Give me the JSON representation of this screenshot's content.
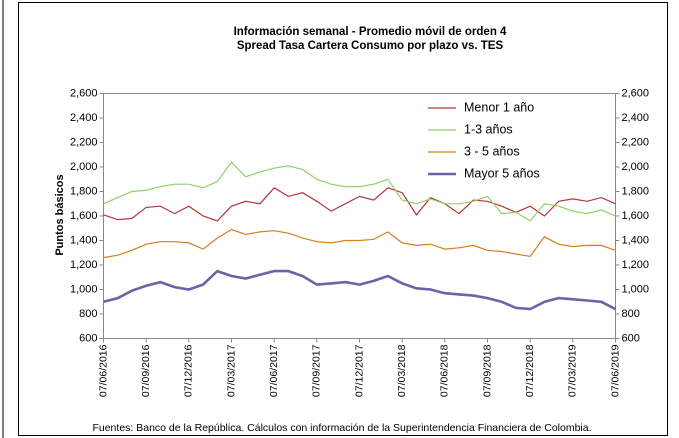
{
  "chart_data": {
    "type": "line",
    "title": "Información semanal - Promedio móvil de orden 4",
    "subtitle": "Spread Tasa Cartera Consumo  por plazo vs. TES",
    "y_label": "Puntos básicos",
    "footer": "Fuentes: Banco de la República. Cálculos con información de la Superintendencia Financiera de Colombia.",
    "x": [
      "07/06/2016",
      "07/07/2016",
      "07/08/2016",
      "07/09/2016",
      "07/10/2016",
      "07/11/2016",
      "07/12/2016",
      "07/01/2017",
      "07/02/2017",
      "07/03/2017",
      "07/04/2017",
      "07/05/2017",
      "07/06/2017",
      "07/07/2017",
      "07/08/2017",
      "07/09/2017",
      "07/10/2017",
      "07/11/2017",
      "07/12/2017",
      "07/01/2018",
      "07/02/2018",
      "07/03/2018",
      "07/04/2018",
      "07/05/2018",
      "07/06/2018",
      "07/07/2018",
      "07/08/2018",
      "07/09/2018",
      "07/10/2018",
      "07/11/2018",
      "07/12/2018",
      "07/01/2019",
      "07/02/2019",
      "07/03/2019",
      "07/04/2019",
      "07/05/2019",
      "07/06/2019"
    ],
    "xticks": [
      "07/06/2016",
      "07/09/2016",
      "07/12/2016",
      "07/03/2017",
      "07/06/2017",
      "07/09/2017",
      "07/12/2017",
      "07/03/2018",
      "07/06/2018",
      "07/09/2018",
      "07/12/2018",
      "07/03/2019",
      "07/06/2019"
    ],
    "series": [
      {
        "name": "Menor 1 año",
        "color": "#b8343a",
        "width": 1.2,
        "values": [
          1610,
          1570,
          1580,
          1670,
          1680,
          1620,
          1680,
          1600,
          1560,
          1680,
          1720,
          1700,
          1830,
          1760,
          1790,
          1720,
          1640,
          1700,
          1760,
          1730,
          1830,
          1790,
          1610,
          1750,
          1700,
          1620,
          1730,
          1720,
          1680,
          1630,
          1680,
          1600,
          1720,
          1740,
          1720,
          1750,
          1700
        ]
      },
      {
        "name": "1-3 años",
        "color": "#8fd16a",
        "width": 1.2,
        "values": [
          1700,
          1750,
          1800,
          1810,
          1840,
          1860,
          1860,
          1830,
          1880,
          2040,
          1920,
          1960,
          1990,
          2010,
          1980,
          1900,
          1860,
          1840,
          1840,
          1860,
          1900,
          1730,
          1700,
          1740,
          1700,
          1700,
          1720,
          1760,
          1620,
          1630,
          1560,
          1700,
          1680,
          1640,
          1620,
          1650,
          1600
        ]
      },
      {
        "name": "3 - 5 años",
        "color": "#d4801c",
        "width": 1.2,
        "values": [
          1260,
          1280,
          1320,
          1370,
          1390,
          1390,
          1380,
          1330,
          1420,
          1490,
          1450,
          1470,
          1480,
          1460,
          1420,
          1390,
          1380,
          1400,
          1400,
          1410,
          1470,
          1380,
          1360,
          1370,
          1330,
          1340,
          1360,
          1320,
          1310,
          1290,
          1270,
          1430,
          1370,
          1350,
          1360,
          1360,
          1320
        ]
      },
      {
        "name": "Mayor 5 años",
        "color": "#7060a8",
        "width": 2.6,
        "values": [
          900,
          930,
          990,
          1030,
          1060,
          1020,
          1000,
          1040,
          1150,
          1110,
          1090,
          1120,
          1150,
          1150,
          1110,
          1040,
          1050,
          1060,
          1040,
          1070,
          1110,
          1050,
          1010,
          1000,
          970,
          960,
          950,
          930,
          900,
          850,
          840,
          900,
          930,
          920,
          910,
          900,
          840
        ]
      }
    ],
    "ylim": [
      600,
      2600
    ],
    "yticks": [
      {
        "value": 600,
        "label": "600"
      },
      {
        "value": 800,
        "label": "800"
      },
      {
        "value": 1000,
        "label": "1,000"
      },
      {
        "value": 1200,
        "label": "1,200"
      },
      {
        "value": 1400,
        "label": "1,400"
      },
      {
        "value": 1600,
        "label": "1,600"
      },
      {
        "value": 1800,
        "label": "1,800"
      },
      {
        "value": 2000,
        "label": "2,000"
      },
      {
        "value": 2200,
        "label": "2,200"
      },
      {
        "value": 2400,
        "label": "2,400"
      },
      {
        "value": 2600,
        "label": "2,600"
      }
    ],
    "grid": false,
    "legend": "upper right"
  }
}
